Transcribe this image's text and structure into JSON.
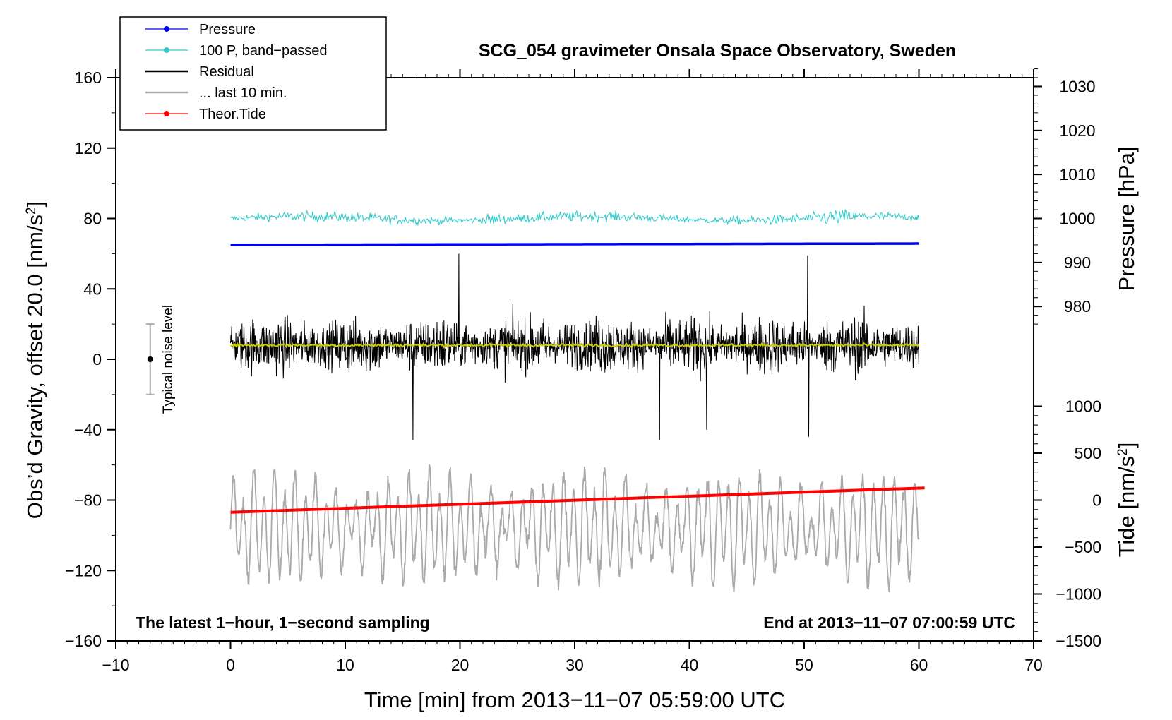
{
  "chart_data": {
    "type": "line",
    "title": "SCG_054 gravimeter Onsala Space Observatory, Sweden",
    "xlabel": "Time [min] from 2013−11−07 05:59:00 UTC",
    "ylabel_left_main": "Obs’d Gravity, offset 20.0 [nm/s",
    "ylabel_left_sup": "2",
    "ylabel_left_tail": "]",
    "ylabel_pressure": "Pressure [hPa]",
    "ylabel_tide_main": "Tide [nm/s",
    "ylabel_tide_sup": "2",
    "ylabel_tide_tail": "]",
    "xlim": [
      -10,
      70
    ],
    "ylim": [
      -160,
      160
    ],
    "x_ticks": [
      "−10",
      "0",
      "10",
      "20",
      "30",
      "40",
      "50",
      "60",
      "70"
    ],
    "x_tick_values": [
      -10,
      0,
      10,
      20,
      30,
      40,
      50,
      60,
      70
    ],
    "y_ticks": [
      "160",
      "120",
      "80",
      "40",
      "0",
      "−40",
      "−80",
      "−120",
      "−160"
    ],
    "y_tick_values": [
      160,
      120,
      80,
      40,
      0,
      -40,
      -80,
      -120,
      -160
    ],
    "pressure_ticks": [
      "1030",
      "1020",
      "1010",
      "1000",
      "990",
      "980"
    ],
    "pressure_tick_values": [
      1030,
      1020,
      1010,
      1000,
      990,
      980
    ],
    "pressure_axis_map": {
      "value_a": 1000,
      "y_a": 80,
      "value_b": 990,
      "y_b": 55
    },
    "tide_ticks": [
      "1000",
      "500",
      "0",
      "−500",
      "−1000",
      "−1500"
    ],
    "tide_tick_values": [
      1000,
      500,
      0,
      -500,
      -1000,
      -1500
    ],
    "tide_axis_map": {
      "value_a": 0,
      "y_a": -80,
      "value_b": -1500,
      "y_b": -160
    },
    "legend": {
      "placement": "top-left",
      "entries": [
        {
          "label": "Pressure",
          "color": "#0000ff",
          "marker": true
        },
        {
          "label": "100 P, band−passed",
          "color": "#33cccc",
          "marker": true
        },
        {
          "label": "Residual",
          "color": "#000000",
          "marker": false
        },
        {
          "label": "... last 10 min.",
          "color": "#aaaaaa",
          "marker": false
        },
        {
          "label": "Theor.Tide",
          "color": "#ff0000",
          "marker": true
        }
      ]
    },
    "noise_level": {
      "label": "Typical noise level",
      "x": -7,
      "y_low": -20,
      "y_high": 20,
      "center": 0
    },
    "note_left": "The latest 1−hour, 1−second sampling",
    "note_right": "End at 2013−11−07 07:00:59 UTC",
    "series": [
      {
        "name": "Pressure",
        "color": "#0000ff",
        "x_range": [
          0,
          60
        ],
        "pressure_hPa_start": 994.0,
        "pressure_hPa_end": 994.3
      },
      {
        "name": "100 P, band−passed",
        "color": "#33cccc",
        "x_range": [
          0,
          60
        ],
        "center_y": 80,
        "amplitude": 9
      },
      {
        "name": "Residual",
        "color": "#000000",
        "x_range": [
          0,
          60
        ],
        "center_y": 8,
        "range_y": [
          -47,
          63
        ]
      },
      {
        "name": "... last 10 min.",
        "color": "#aaaaaa",
        "x_range": [
          0,
          60
        ],
        "center_y": -96,
        "range_y": [
          -148,
          -47
        ]
      },
      {
        "name": "Theor.Tide",
        "color": "#ff0000",
        "x_range": [
          0,
          60.5
        ],
        "tide_start": -130,
        "tide_end": 130
      },
      {
        "name": "",
        "color": "#cccc00",
        "x_range": [
          0,
          60
        ],
        "center_y": 8
      }
    ]
  }
}
